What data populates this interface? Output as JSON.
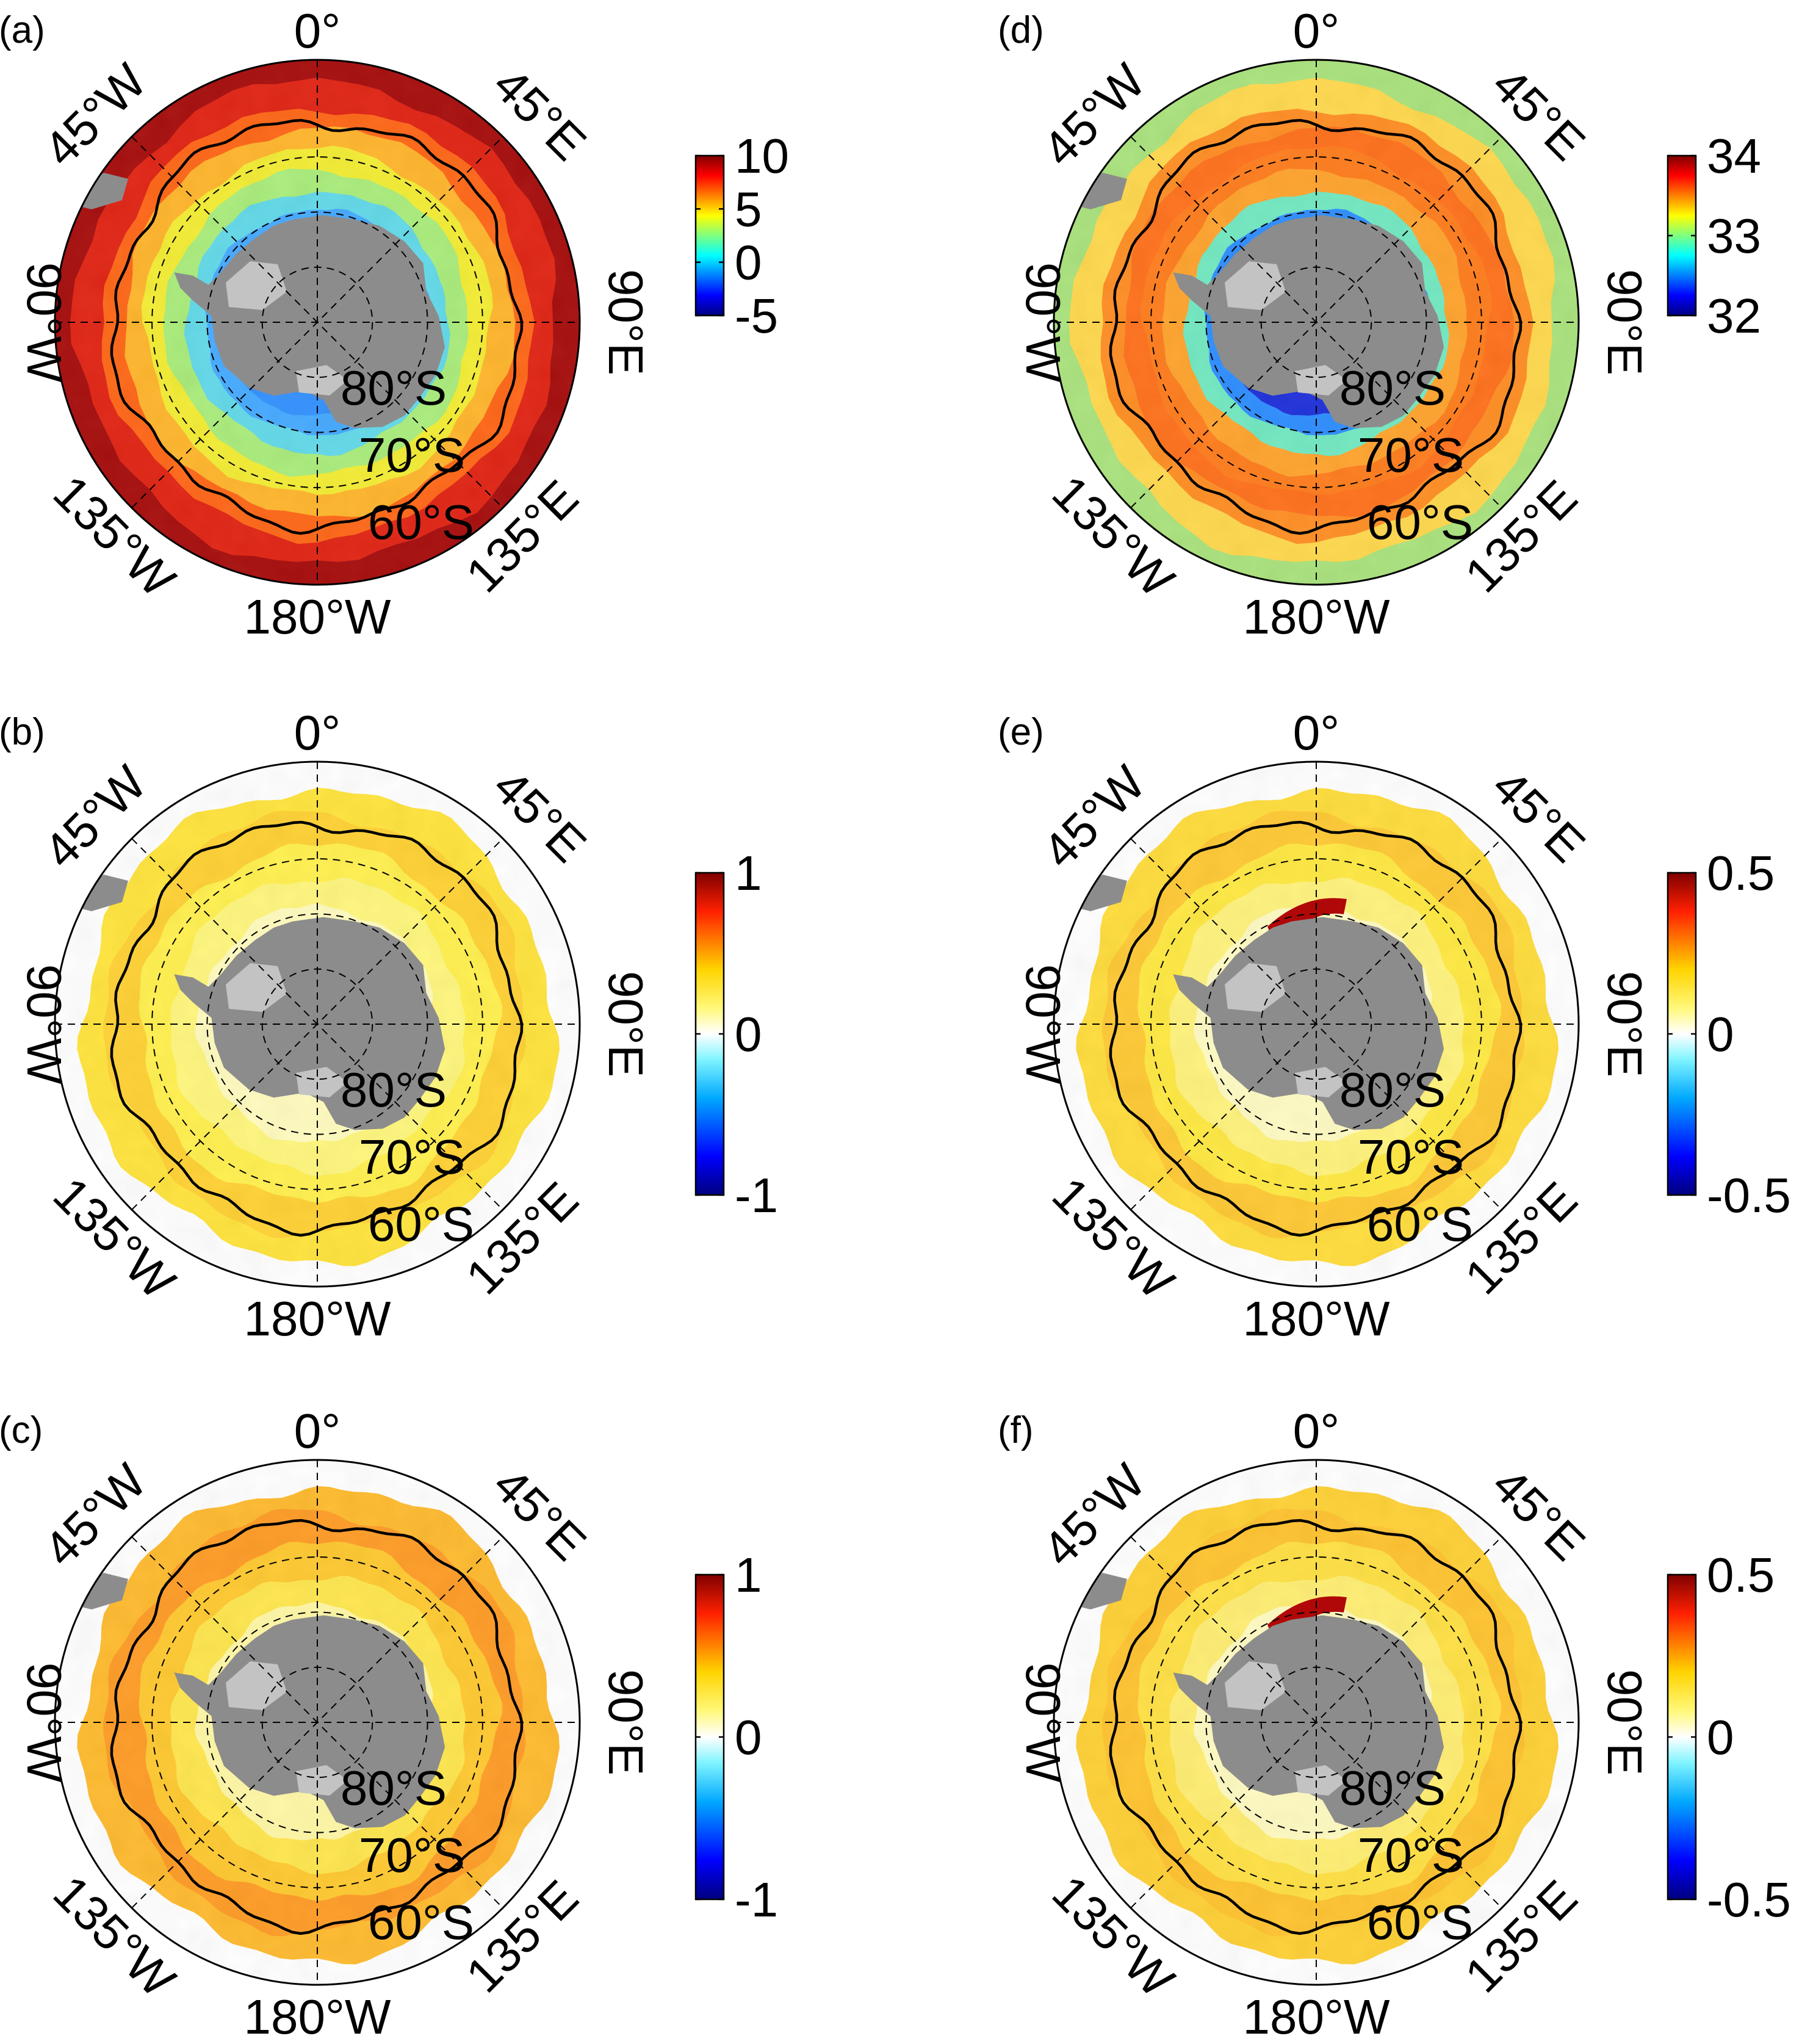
{
  "colors": {
    "land": "#8c8c8c",
    "ice_shelf": "#c3c3c3",
    "coast_outline": "#000000",
    "grid": "#000000",
    "background": "#ffffff"
  },
  "colormap": [
    "#00007f",
    "#0000ff",
    "#007fff",
    "#00ffff",
    "#7fff7f",
    "#ffff00",
    "#ff7f00",
    "#ff0000",
    "#7f0000"
  ],
  "graticule_labels": {
    "top": "0°",
    "upper_left": "45°W",
    "upper_right": "45°E",
    "left": "90°W",
    "right": "90°E",
    "lower_left": "135°W",
    "lower_right": "135°E",
    "bottom": "180°W",
    "lat_80": "80°S",
    "lat_70": "70°S",
    "lat_60": "60°S"
  },
  "panels": [
    {
      "id": "a",
      "letter": "(a)",
      "colorbar": {
        "min": -5,
        "max": 10,
        "ticks": [
          "10",
          "5",
          "0",
          "-5"
        ]
      },
      "field_style": "full-field",
      "ring_colors": [
        "#2f8fff",
        "#42a8ff",
        "#5fd8e8",
        "#a8ec78",
        "#f3ec30",
        "#ffb428",
        "#ff6412",
        "#e02010",
        "#a50808"
      ]
    },
    {
      "id": "b",
      "letter": "(b)",
      "colorbar": {
        "min": -1,
        "max": 1,
        "ticks": [
          "1",
          "0",
          "-1"
        ]
      },
      "field_style": "anomaly",
      "ring_colors": [
        "#ffe438",
        "#ffd030",
        "#fff04a",
        "#fff67a",
        "#fffbbd"
      ]
    },
    {
      "id": "c",
      "letter": "(c)",
      "colorbar": {
        "min": -1,
        "max": 1,
        "ticks": [
          "1",
          "0",
          "-1"
        ]
      },
      "field_style": "anomaly",
      "ring_colors": [
        "#ffba2a",
        "#ff9a22",
        "#ffc82c",
        "#ffe64a",
        "#fff7a4"
      ]
    },
    {
      "id": "d",
      "letter": "(d)",
      "colorbar": {
        "min": 32,
        "max": 34,
        "ticks": [
          "34",
          "33",
          "32"
        ]
      },
      "field_style": "full-field",
      "ring_colors": [
        "#1a2cd8",
        "#2a8cff",
        "#6fe8c0",
        "#ffa22a",
        "#ff7a18",
        "#ff6e18",
        "#ff8c20",
        "#ffd84a",
        "#a8e27a"
      ]
    },
    {
      "id": "e",
      "letter": "(e)",
      "colorbar": {
        "min": -0.5,
        "max": 0.5,
        "ticks": [
          "0.5",
          "0",
          "-0.5"
        ]
      },
      "field_style": "anomaly",
      "ring_colors": [
        "#ffdc38",
        "#ffc830",
        "#ffe83e",
        "#fff27a",
        "#fffbc2"
      ]
    },
    {
      "id": "f",
      "letter": "(f)",
      "colorbar": {
        "min": -0.5,
        "max": 0.5,
        "ticks": [
          "0.5",
          "0",
          "-0.5"
        ]
      },
      "field_style": "anomaly",
      "ring_colors": [
        "#ffd032",
        "#ffc22c",
        "#ffe040",
        "#ffee70",
        "#fffac0"
      ]
    }
  ]
}
